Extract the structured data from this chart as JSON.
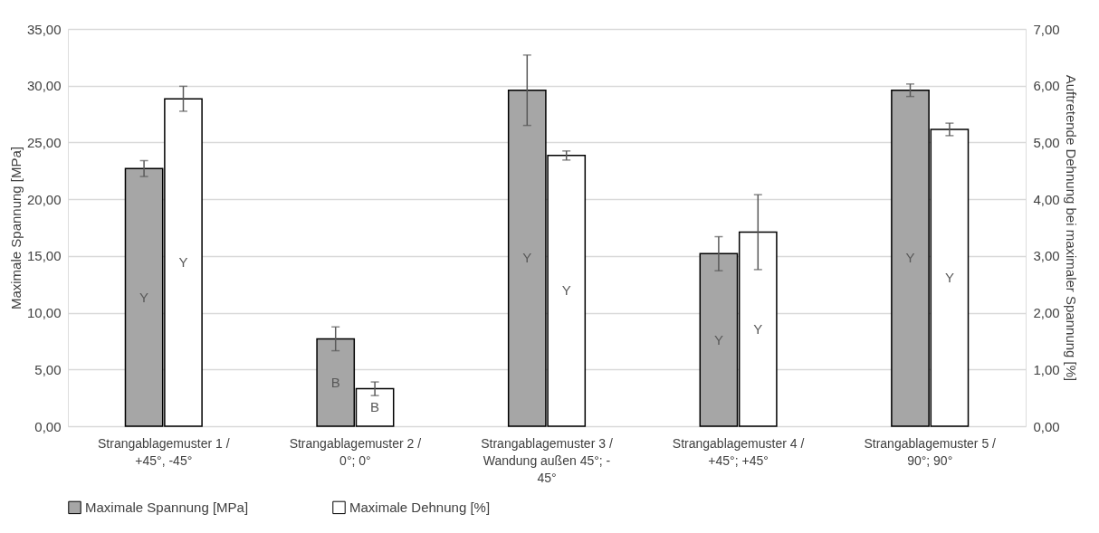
{
  "chart_data": {
    "type": "bar",
    "categories": [
      "Strangablagemuster 1 /\n+45°, -45°",
      "Strangablagemuster 2 /\n0°; 0°",
      "Strangablagemuster 3 /\nWandung außen 45°; -\n45°",
      "Strangablagemuster 4 /\n+45°; +45°",
      "Strangablagemuster 5 /\n90°; 90°"
    ],
    "ylabel": "Maximale Spannung [MPa]",
    "y2label": "Auftretende Dehnung bei maximaler Spannung [%]",
    "series": [
      {
        "name": "Maximale Spannung [MPa]",
        "color": "#a6a6a6",
        "axis": "y",
        "values": [
          22.7,
          7.7,
          29.6,
          15.2,
          29.6
        ],
        "errors": [
          0.7,
          1.05,
          3.1,
          1.5,
          0.55
        ],
        "value_labels": [
          "Y",
          "B",
          "Y",
          "Y",
          "Y"
        ]
      },
      {
        "name": "Maximale Dehnung [%]",
        "color": "#ffffff",
        "axis": "y2",
        "values": [
          5.77,
          0.66,
          4.77,
          3.42,
          5.23
        ],
        "errors": [
          0.22,
          0.12,
          0.08,
          0.66,
          0.11
        ],
        "value_labels": [
          "Y",
          "B",
          "Y",
          "Y",
          "Y"
        ]
      }
    ],
    "ylim": [
      0,
      35
    ],
    "yticks": [
      {
        "value": 0,
        "label": "0,00"
      },
      {
        "value": 5,
        "label": "5,00"
      },
      {
        "value": 10,
        "label": "10,00"
      },
      {
        "value": 15,
        "label": "15,00"
      },
      {
        "value": 20,
        "label": "20,00"
      },
      {
        "value": 25,
        "label": "25,00"
      },
      {
        "value": 30,
        "label": "30,00"
      },
      {
        "value": 35,
        "label": "35,00"
      }
    ],
    "y2lim": [
      0,
      7
    ],
    "y2ticks": [
      {
        "value": 0,
        "label": "0,00"
      },
      {
        "value": 1,
        "label": "1,00"
      },
      {
        "value": 2,
        "label": "2,00"
      },
      {
        "value": 3,
        "label": "3,00"
      },
      {
        "value": 4,
        "label": "4,00"
      },
      {
        "value": 5,
        "label": "5,00"
      },
      {
        "value": 6,
        "label": "6,00"
      },
      {
        "value": 7,
        "label": "7,00"
      }
    ],
    "grid": "y",
    "legend": "bottom"
  }
}
